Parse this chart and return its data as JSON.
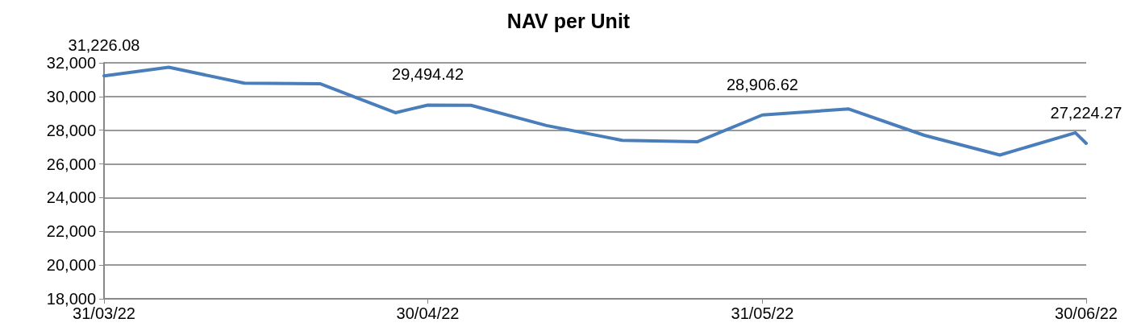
{
  "chart_data": {
    "type": "line",
    "title": "NAV per Unit",
    "x": [
      "2022-03-31",
      "2022-04-06",
      "2022-04-13",
      "2022-04-20",
      "2022-04-27",
      "2022-04-30",
      "2022-05-04",
      "2022-05-11",
      "2022-05-18",
      "2022-05-25",
      "2022-05-31",
      "2022-06-08",
      "2022-06-15",
      "2022-06-22",
      "2022-06-29",
      "2022-06-30"
    ],
    "series": [
      {
        "color": "#4a7ebb",
        "values": [
          31226.08,
          31740,
          30790,
          30760,
          29040,
          29494.42,
          29480,
          28280,
          27400,
          27320,
          28906.62,
          29260,
          27700,
          26530,
          27850,
          27224.27
        ],
        "value_labels": [
          "31,226.08",
          null,
          null,
          null,
          null,
          "29,494.42",
          null,
          null,
          null,
          null,
          "28,906.62",
          null,
          null,
          null,
          null,
          "27,224.27"
        ]
      }
    ],
    "xlim": [
      "2022-03-31",
      "2022-06-30"
    ],
    "xticks": [
      {
        "value": "2022-03-31",
        "label": "31/03/22"
      },
      {
        "value": "2022-04-30",
        "label": "30/04/22"
      },
      {
        "value": "2022-05-31",
        "label": "31/05/22"
      },
      {
        "value": "2022-06-30",
        "label": "30/06/22"
      }
    ],
    "ylim": [
      18000,
      32000
    ],
    "yticks": [
      {
        "value": 18000,
        "label": "18,000"
      },
      {
        "value": 20000,
        "label": "20,000"
      },
      {
        "value": 22000,
        "label": "22,000"
      },
      {
        "value": 24000,
        "label": "24,000"
      },
      {
        "value": 26000,
        "label": "26,000"
      },
      {
        "value": 28000,
        "label": "28,000"
      },
      {
        "value": 30000,
        "label": "30,000"
      },
      {
        "value": 32000,
        "label": "32,000"
      }
    ],
    "grid": "y",
    "marker": "none",
    "line_style": "solid"
  }
}
